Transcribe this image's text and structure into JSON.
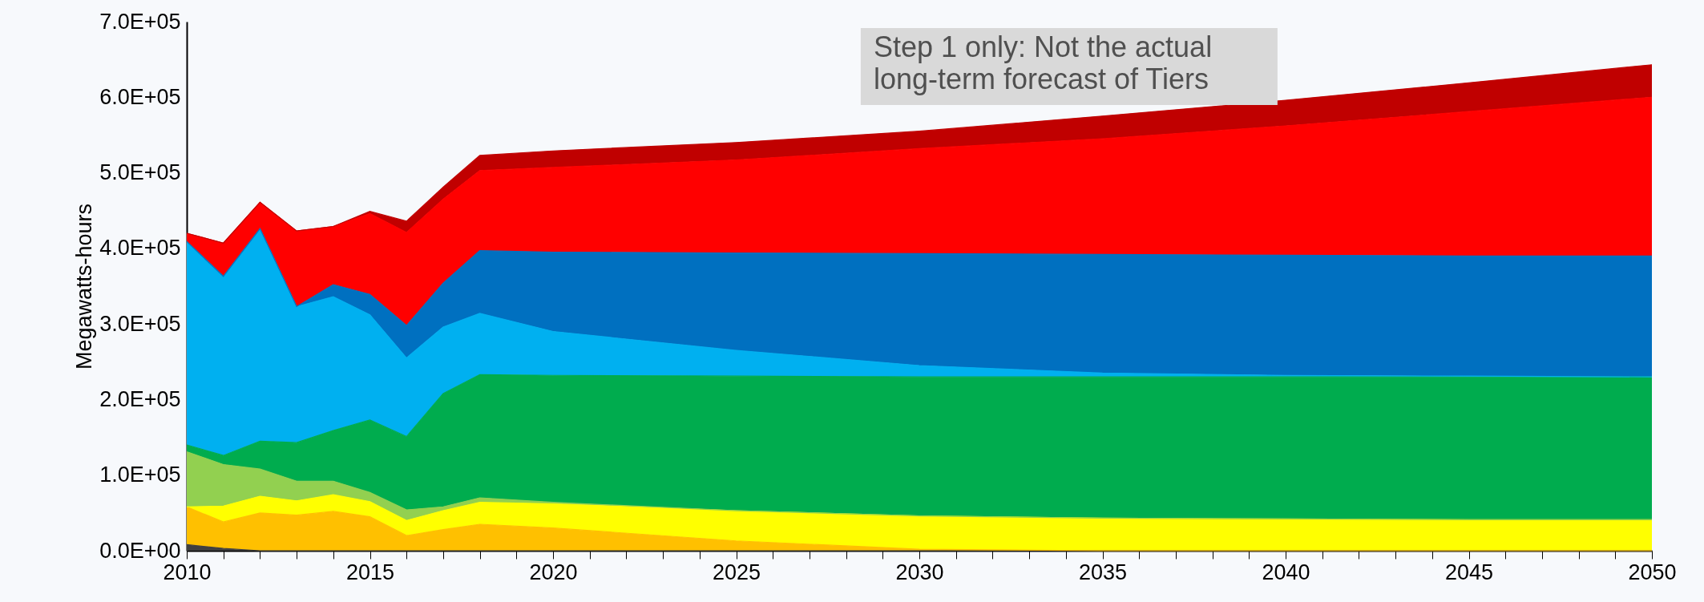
{
  "chart_data": {
    "type": "area",
    "stacked": true,
    "ylabel": "Megawatts-hours",
    "x": [
      2010,
      2011,
      2012,
      2013,
      2014,
      2015,
      2016,
      2017,
      2018,
      2020,
      2025,
      2030,
      2035,
      2040,
      2045,
      2050
    ],
    "xlim": [
      2010,
      2050
    ],
    "xticks": [
      2010,
      {
        "value": 2011,
        "label": null
      },
      {
        "value": 2012,
        "label": null
      },
      {
        "value": 2013,
        "label": null
      },
      {
        "value": 2014,
        "label": null
      },
      2015,
      {
        "value": 2016,
        "label": null
      },
      {
        "value": 2017,
        "label": null
      },
      {
        "value": 2018,
        "label": null
      },
      {
        "value": 2019,
        "label": null
      },
      2020,
      {
        "value": 2021,
        "label": null
      },
      {
        "value": 2022,
        "label": null
      },
      {
        "value": 2023,
        "label": null
      },
      {
        "value": 2024,
        "label": null
      },
      2025,
      {
        "value": 2026,
        "label": null
      },
      {
        "value": 2027,
        "label": null
      },
      {
        "value": 2028,
        "label": null
      },
      {
        "value": 2029,
        "label": null
      },
      2030,
      {
        "value": 2031,
        "label": null
      },
      {
        "value": 2032,
        "label": null
      },
      {
        "value": 2033,
        "label": null
      },
      {
        "value": 2034,
        "label": null
      },
      2035,
      {
        "value": 2036,
        "label": null
      },
      {
        "value": 2037,
        "label": null
      },
      {
        "value": 2038,
        "label": null
      },
      {
        "value": 2039,
        "label": null
      },
      2040,
      {
        "value": 2041,
        "label": null
      },
      {
        "value": 2042,
        "label": null
      },
      {
        "value": 2043,
        "label": null
      },
      {
        "value": 2044,
        "label": null
      },
      2045,
      {
        "value": 2046,
        "label": null
      },
      {
        "value": 2047,
        "label": null
      },
      {
        "value": 2048,
        "label": null
      },
      {
        "value": 2049,
        "label": null
      },
      2050
    ],
    "ylim": [
      0,
      700000
    ],
    "yticks": [
      {
        "value": 0,
        "label": "0.0E+00"
      },
      {
        "value": 100000,
        "label": "1.0E+05"
      },
      {
        "value": 200000,
        "label": "2.0E+05"
      },
      {
        "value": 300000,
        "label": "3.0E+05"
      },
      {
        "value": 400000,
        "label": "4.0E+05"
      },
      {
        "value": 500000,
        "label": "5.0E+05"
      },
      {
        "value": 600000,
        "label": "6.0E+05"
      },
      {
        "value": 700000,
        "label": "7.0E+05"
      }
    ],
    "grid": false,
    "legend": false,
    "series": [
      {
        "color": "#404040",
        "values": [
          8000,
          3000,
          0,
          0,
          0,
          0,
          0,
          0,
          0,
          0,
          0,
          0,
          0,
          0,
          0,
          0
        ]
      },
      {
        "color": "#ffc000",
        "values": [
          50000,
          35000,
          50000,
          47000,
          52000,
          45000,
          20000,
          28000,
          35000,
          30000,
          13000,
          2000,
          0,
          0,
          0,
          0
        ]
      },
      {
        "color": "#ffff00",
        "values": [
          0,
          21000,
          22000,
          19000,
          22000,
          20000,
          20000,
          25000,
          29000,
          32000,
          40000,
          44000,
          43000,
          42000,
          41000,
          41000
        ]
      },
      {
        "color": "#92d050",
        "values": [
          73000,
          55000,
          36000,
          26000,
          18000,
          12000,
          14000,
          5000,
          6000,
          2000,
          0,
          0,
          0,
          0,
          0,
          0
        ]
      },
      {
        "color": "#00ac4e",
        "values": [
          9000,
          12000,
          37000,
          51000,
          67000,
          96000,
          97000,
          150000,
          163000,
          168000,
          178000,
          184000,
          187000,
          188000,
          189000,
          189000
        ]
      },
      {
        "color": "#00b0f0",
        "values": [
          269000,
          237000,
          281000,
          180000,
          177000,
          139000,
          104000,
          88000,
          81000,
          58000,
          34000,
          15000,
          5000,
          2000,
          1000,
          0
        ]
      },
      {
        "color": "#0070c0",
        "values": [
          0,
          0,
          0,
          0,
          16000,
          27000,
          43000,
          58000,
          83000,
          105000,
          129000,
          148000,
          157000,
          159000,
          159000,
          160000
        ]
      },
      {
        "color": "#ff0000",
        "values": [
          11000,
          44000,
          35000,
          100000,
          77000,
          107000,
          123000,
          111000,
          106000,
          112000,
          123000,
          139000,
          153000,
          171000,
          191000,
          210000
        ]
      },
      {
        "color": "#c00000",
        "values": [
          0,
          0,
          0,
          0,
          0,
          3000,
          15000,
          16000,
          20000,
          22000,
          23000,
          23000,
          30000,
          34000,
          38000,
          43000
        ]
      }
    ],
    "annotations": [
      "Step 1 only: Not the actual\nlong-term forecast of Tiers"
    ]
  }
}
